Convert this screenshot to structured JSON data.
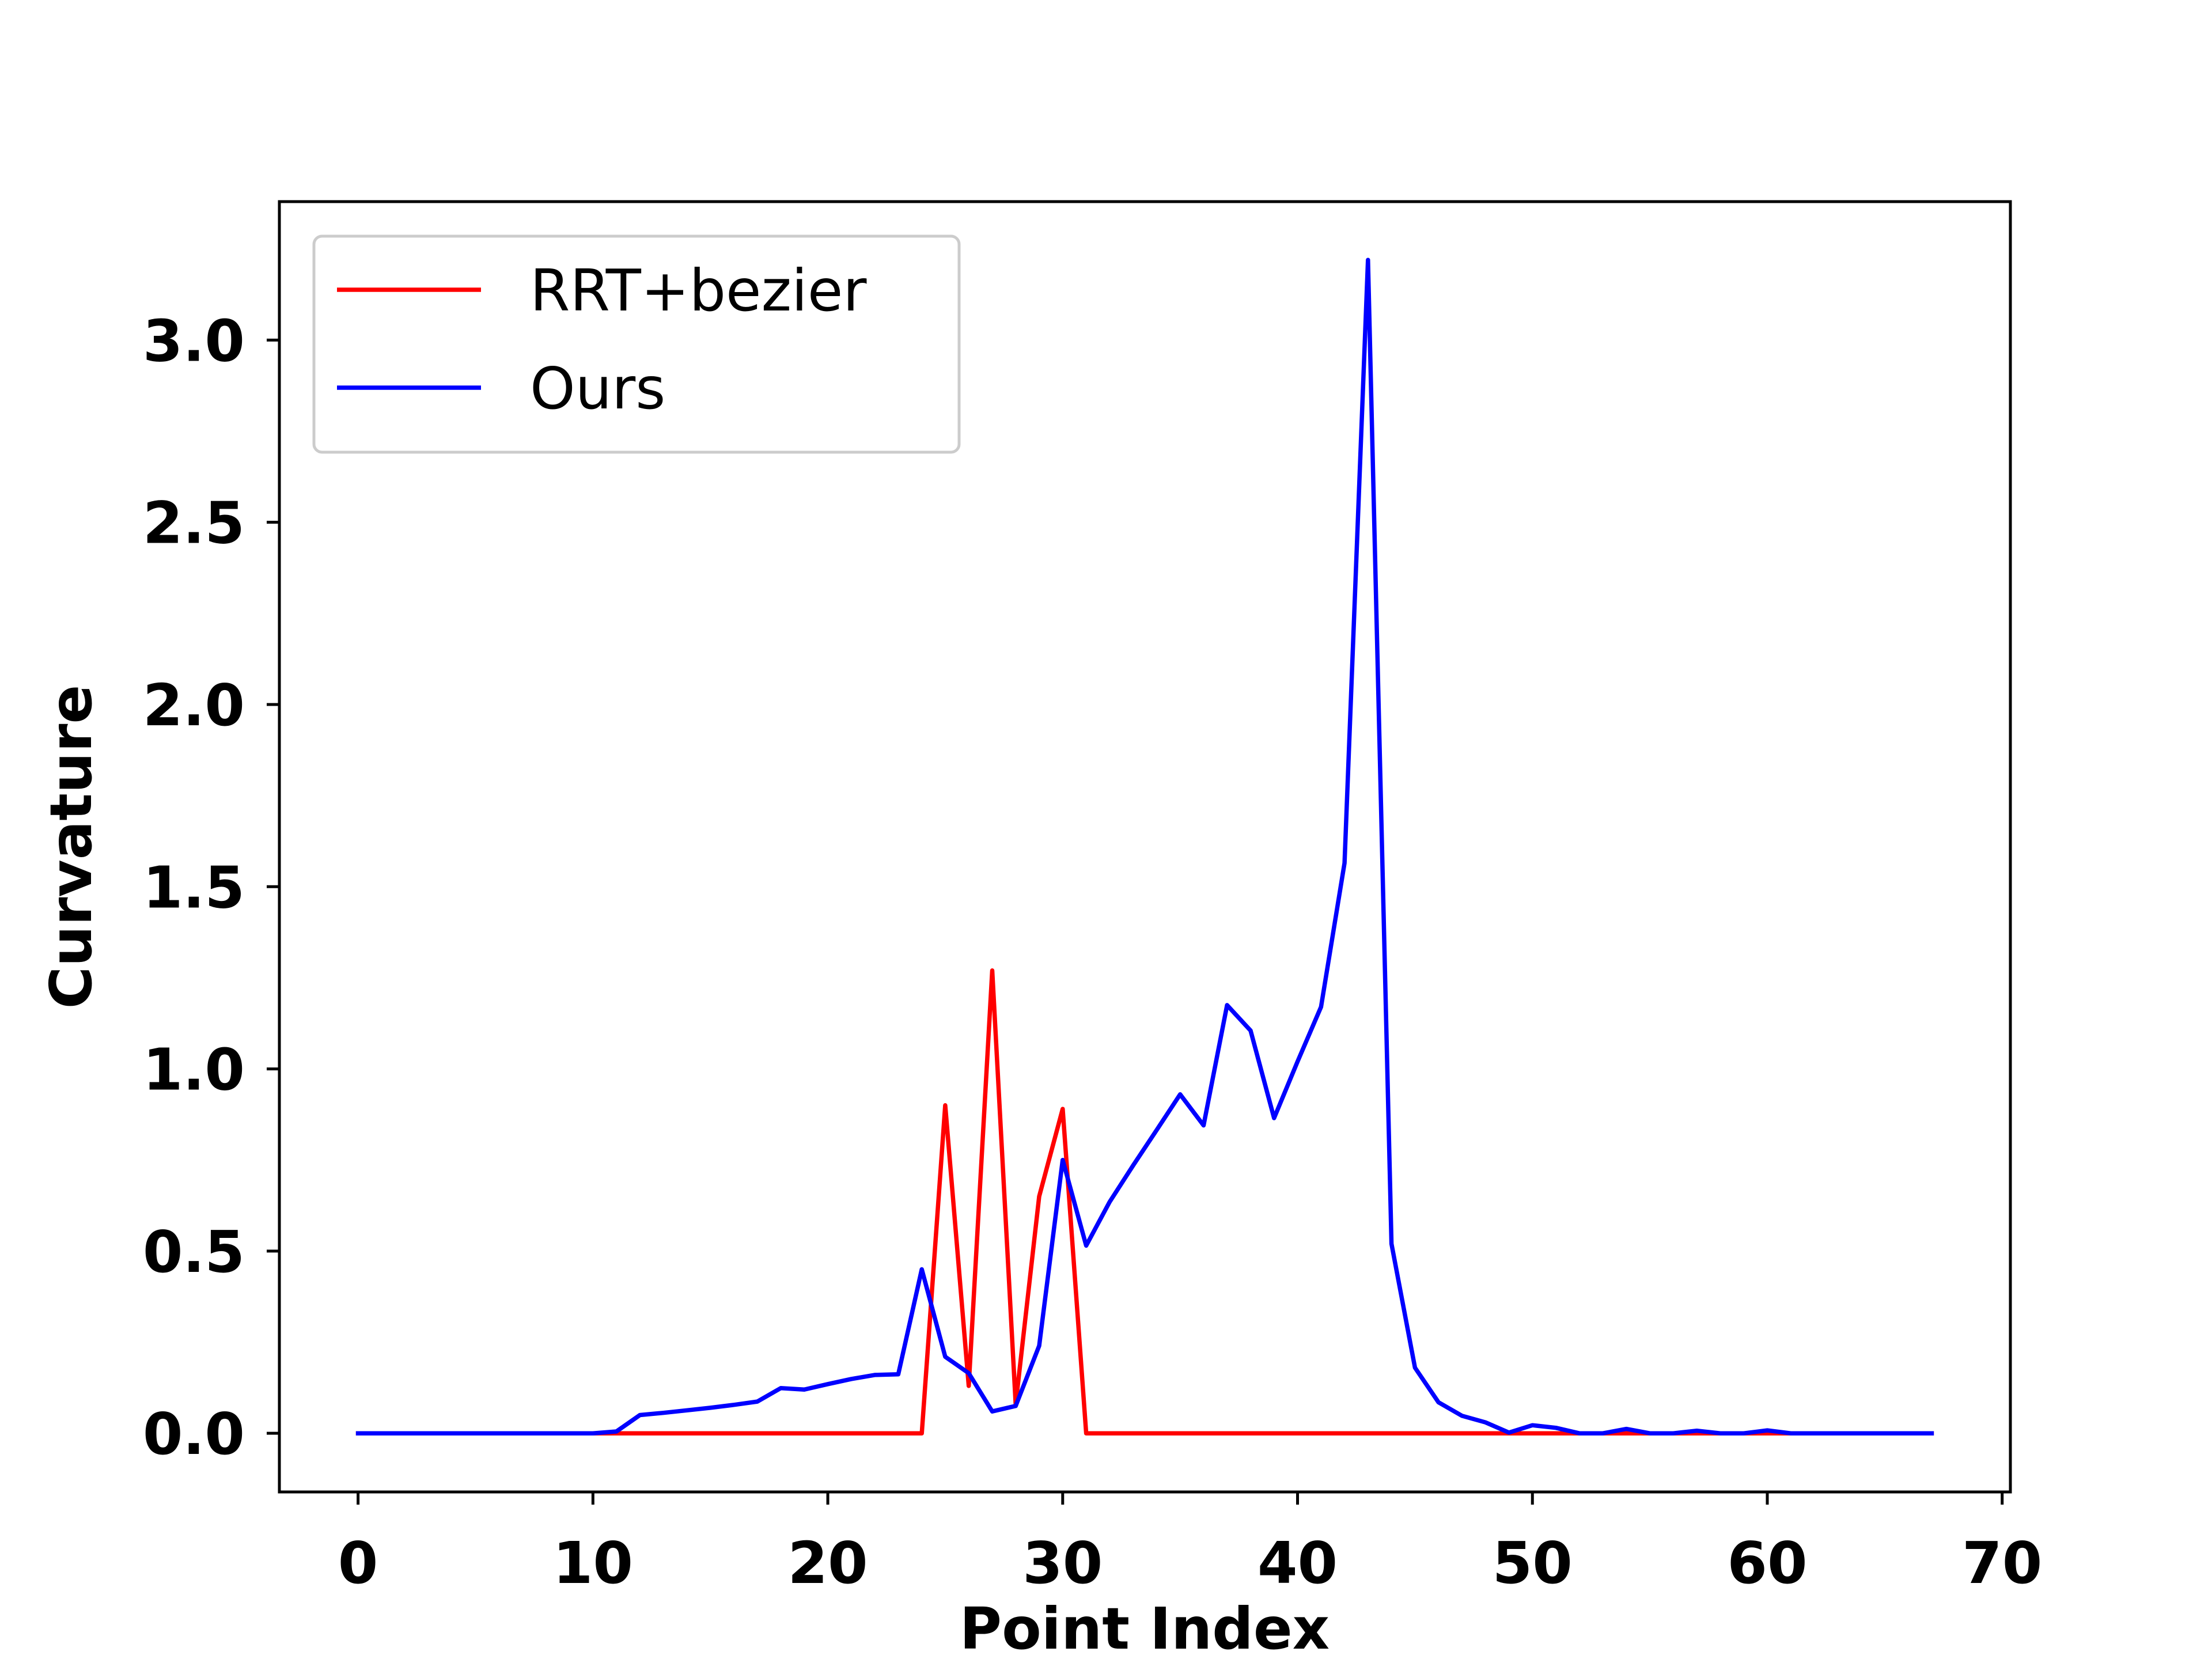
{
  "chart_data": {
    "type": "line",
    "title": "",
    "xlabel": "Point Index",
    "ylabel": "Curvature",
    "xlim": [
      -3.35,
      70.35
    ],
    "ylim": [
      -0.161,
      3.38
    ],
    "xticks": [
      0,
      10,
      20,
      30,
      40,
      50,
      60,
      70
    ],
    "yticks": [
      0.0,
      0.5,
      1.0,
      1.5,
      2.0,
      2.5,
      3.0
    ],
    "xtick_labels": [
      "0",
      "10",
      "20",
      "30",
      "40",
      "50",
      "60",
      "70"
    ],
    "ytick_labels": [
      "0.0",
      "0.5",
      "1.0",
      "1.5",
      "2.0",
      "2.5",
      "3.0"
    ],
    "grid": false,
    "legend_position": "upper-left",
    "series": [
      {
        "name": "RRT+bezier",
        "color": "#ff0000",
        "x": [
          0,
          1,
          2,
          3,
          4,
          5,
          6,
          7,
          8,
          9,
          10,
          11,
          12,
          13,
          14,
          15,
          16,
          17,
          18,
          19,
          20,
          21,
          22,
          23,
          24,
          25,
          26,
          27,
          28,
          29,
          30,
          31,
          32,
          33,
          34,
          35,
          36,
          37,
          38,
          39,
          40,
          41,
          42,
          43,
          44,
          45,
          46,
          47,
          48,
          49,
          50,
          51,
          52,
          53,
          54,
          55,
          56,
          57,
          58,
          59,
          60,
          61,
          62,
          63,
          64,
          65,
          66,
          67
        ],
        "values": [
          0,
          0,
          0,
          0,
          0,
          0,
          0,
          0,
          0,
          0,
          0,
          0,
          0,
          0,
          0,
          0,
          0,
          0,
          0,
          0,
          0,
          0,
          0,
          0,
          0,
          0.9,
          0.13,
          1.27,
          0.08,
          0.65,
          0.89,
          0,
          0,
          0,
          0,
          0,
          0,
          0,
          0,
          0,
          0,
          0,
          0,
          0,
          0,
          0,
          0,
          0,
          0,
          0,
          0,
          0,
          0,
          0,
          0,
          0,
          0,
          0,
          0,
          0,
          0,
          0,
          0,
          0,
          0,
          0,
          0,
          0
        ]
      },
      {
        "name": "Ours",
        "color": "#0000ff",
        "x": [
          0,
          1,
          2,
          3,
          4,
          5,
          6,
          7,
          8,
          9,
          10,
          11,
          12,
          13,
          14,
          15,
          16,
          17,
          18,
          19,
          20,
          21,
          22,
          23,
          24,
          25,
          26,
          27,
          28,
          29,
          30,
          31,
          32,
          33,
          34,
          35,
          36,
          37,
          38,
          39,
          40,
          41,
          42,
          43,
          44,
          45,
          46,
          47,
          48,
          49,
          50,
          51,
          52,
          53,
          54,
          55,
          56,
          57,
          58,
          59,
          60,
          61,
          62,
          63,
          64,
          65,
          66,
          67
        ],
        "values": [
          0,
          0,
          0,
          0,
          0,
          0,
          0,
          0,
          0,
          0,
          0,
          0.005,
          0.05,
          0.056,
          0.063,
          0.07,
          0.078,
          0.087,
          0.124,
          0.12,
          0.135,
          0.149,
          0.16,
          0.162,
          0.45,
          0.21,
          0.165,
          0.06,
          0.075,
          0.24,
          0.75,
          0.515,
          0.635,
          0.735,
          0.832,
          0.93,
          0.845,
          1.175,
          1.105,
          0.865,
          1.02,
          1.17,
          1.565,
          3.22,
          0.52,
          0.18,
          0.085,
          0.048,
          0.03,
          0.002,
          0.022,
          0.015,
          0,
          0,
          0.012,
          0,
          0,
          0.007,
          0,
          0,
          0.008,
          0,
          0,
          0,
          0,
          0,
          0,
          0
        ]
      }
    ]
  }
}
